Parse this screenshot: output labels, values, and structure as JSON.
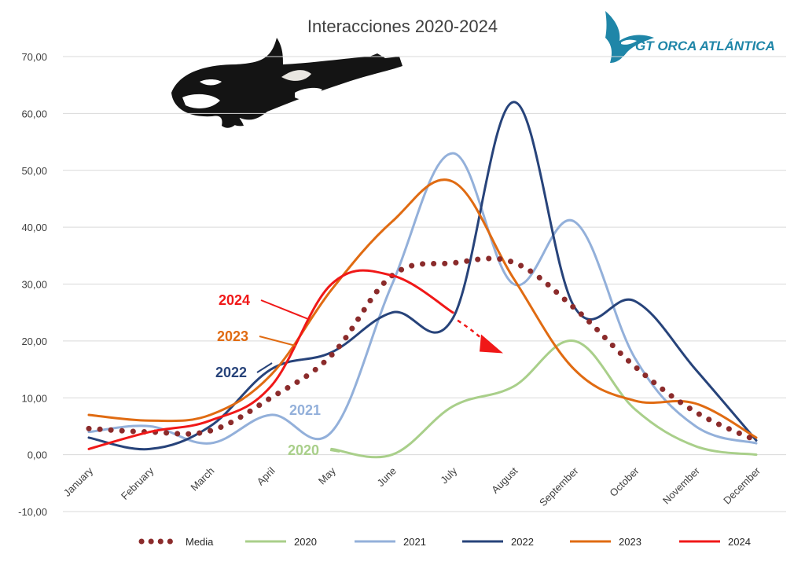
{
  "chart_data": {
    "type": "line",
    "title": "Interacciones 2020-2024",
    "categories": [
      "January",
      "February",
      "March",
      "April",
      "May",
      "June",
      "July",
      "August",
      "September",
      "October",
      "November",
      "December"
    ],
    "y_ticks": [
      "-10,00",
      "0,00",
      "10,00",
      "20,00",
      "30,00",
      "40,00",
      "50,00",
      "60,00",
      "70,00"
    ],
    "ylim": [
      -10,
      70
    ],
    "grid": true,
    "legend_position": "bottom",
    "series": [
      {
        "name": "Media",
        "style": "dotted",
        "color": "#8b2b2b",
        "values": [
          4.6,
          4.0,
          4.2,
          10.0,
          17.5,
          31.5,
          33.7,
          33.8,
          25.8,
          15.5,
          7.5,
          2.5
        ]
      },
      {
        "name": "2020",
        "color": "#a9cf8a",
        "values": [
          null,
          null,
          null,
          null,
          1.0,
          0.0,
          8.5,
          12.0,
          20.0,
          8.0,
          1.5,
          0.0
        ]
      },
      {
        "name": "2021",
        "color": "#93b0da",
        "values": [
          4.0,
          5.0,
          2.0,
          7.0,
          4.0,
          30.0,
          53.0,
          30.0,
          41.0,
          17.0,
          5.0,
          2.0
        ]
      },
      {
        "name": "2022",
        "color": "#27437a",
        "values": [
          3.0,
          1.0,
          5.0,
          15.0,
          18.0,
          25.0,
          24.0,
          62.0,
          26.0,
          27.0,
          15.0,
          2.5
        ]
      },
      {
        "name": "2023",
        "color": "#e06b12",
        "values": [
          7.0,
          6.0,
          7.0,
          14.0,
          29.0,
          41.0,
          48.0,
          31.0,
          15.0,
          9.5,
          9.0,
          3.0
        ]
      },
      {
        "name": "2024",
        "color": "#f01818",
        "values": [
          1.0,
          4.0,
          6.0,
          12.0,
          30.0,
          31.5,
          25.0,
          null,
          null,
          null,
          null,
          null
        ]
      }
    ],
    "annotations": [
      {
        "text": "2024",
        "color": "#f01818"
      },
      {
        "text": "2023",
        "color": "#e06b12"
      },
      {
        "text": "2022",
        "color": "#27437a"
      },
      {
        "text": "2021",
        "color": "#93b0da"
      },
      {
        "text": "2020",
        "color": "#a9cf8a"
      }
    ]
  },
  "logo": {
    "text": "GT ORCA ATLÁNTICA",
    "color": "#1f86a8"
  }
}
